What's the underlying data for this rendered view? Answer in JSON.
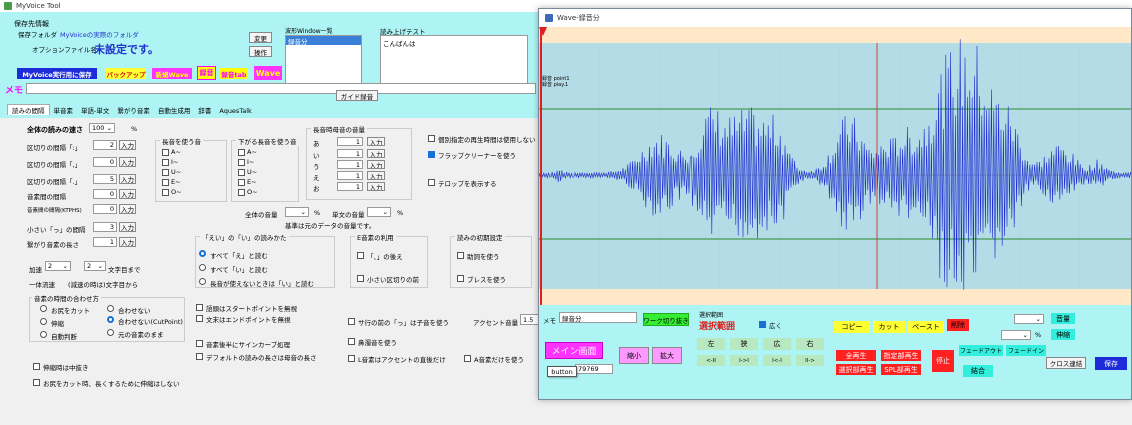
{
  "main_window": {
    "title": "MyVoice Tool",
    "save_dest_label": "保存先情報",
    "save_folder_label": "保存フォルダ",
    "save_folder_value": "MyVoiceの実際のフォルダ",
    "change_button": "変更",
    "option_file_label": "オプションファイル名",
    "option_file_value": "未設定です。",
    "operation_button": "操作",
    "waveform_list_label": "波形Window一覧",
    "waveform_list_item": "録音分",
    "readout_text_label": "読み上げテスト",
    "readout_text_value": "こんばんは",
    "btn_myvoice_save": "MyVoice実行用に保存",
    "btn_backup": "バックアップ",
    "btn_new_wave": "新規Wave",
    "btn_record": "録音",
    "btn_record_tab": "録音tab",
    "btn_wave": "Wave",
    "memo_label": "メモ",
    "guide_record_button": "ガイド録音",
    "tabs": [
      "読みの間隔",
      "単音素",
      "単語-単文",
      "繋がり音素",
      "自動生成用",
      "辞書",
      "AquesTalk"
    ],
    "overall_speed_label": "全体の読みの速さ",
    "overall_speed_value": "100",
    "percent": "%",
    "interval_rows": [
      {
        "label": "区切りの間隔「:」",
        "value": "2",
        "btn": "入力"
      },
      {
        "label": "区切りの間隔「,」",
        "value": "0",
        "btn": "入力"
      },
      {
        "label": "区切りの間隔「.」",
        "value": "5",
        "btn": "入力"
      },
      {
        "label": "音素間の間隔",
        "value": "0",
        "btn": "入力"
      },
      {
        "label": "音素間の間隔(KTPHS)",
        "value": "0",
        "btn": "入力"
      },
      {
        "label": "小さい「っ」の間隔",
        "value": "3",
        "btn": "入力"
      },
      {
        "label": "繋がり音素の長さ",
        "value": "1",
        "btn": "入力"
      }
    ],
    "long_sound_group": "長音を使う音",
    "long_sound_items": [
      "A~",
      "I~",
      "U~",
      "E~",
      "O~"
    ],
    "falling_long_group": "下がる長音を使う音",
    "falling_long_items": [
      "A~",
      "I~",
      "U~",
      "E~",
      "O~"
    ],
    "long_volume_group": "長音時母音の音量",
    "long_volume_rows": [
      {
        "label": "あ",
        "value": "1",
        "btn": "入力"
      },
      {
        "label": "い",
        "value": "1",
        "btn": "入力"
      },
      {
        "label": "う",
        "value": "1",
        "btn": "入力"
      },
      {
        "label": "え",
        "value": "1",
        "btn": "入力"
      },
      {
        "label": "お",
        "value": "1",
        "btn": "入力"
      }
    ],
    "chk_individual": "個別指定の再生時間は使用しない",
    "chk_flop": "フラップクリーナーを使う",
    "chk_telop": "テロップを表示する",
    "overall_volume_label": "全体の音量",
    "single_volume_label": "単文の音量",
    "volume_unit": "%",
    "volume_note": "基準は元のデータの音量です。",
    "accel_label": "加速",
    "accel_value": "2",
    "accel_value2": "2",
    "accel_suffix": "文字目まで",
    "fixed_speed_label": "一体流速",
    "fixed_speed_note": "(減速の時は)文字目から",
    "ai_group": "「えい」の「い」の読みかた",
    "ai_options": [
      "すべて「え」と読む",
      "すべて「い」と読む",
      "長音が使えないときは「い」と読む"
    ],
    "e_group": "E音素の利用",
    "e_items": [
      "「、」の後え",
      "小さい区切りの前"
    ],
    "initial_group": "読みの初期設定",
    "initial_items": [
      "助詞を使う",
      "ブレスを使う"
    ],
    "timing_group": "音素の時間の合わせ方",
    "timing_options": [
      "お尻をカット",
      "合わせない",
      "伸縮",
      "合わせない(CutPoint)",
      "自動判断",
      "元の音素のまま"
    ],
    "chk_start_ignore": "語頭はスタートポイントを無視",
    "chk_end_ignore": "文末はエンドポイントを無視",
    "chk_small_tsu": "サ行の前の「っ」は子音を使う",
    "accent_volume_label": "アクセント音量",
    "accent_volume_value": "1.5",
    "chk_sine_curve": "音素後半にサインカーブ処理",
    "chk_default_len": "デフォルトの読みの長さは母音の長さ",
    "chk_nasal": "鼻濁音を使う",
    "chk_l_accent": "L音素はアクセントの直後だけ",
    "chk_a_only": "A音素だけを使う",
    "chk_stretch_mid": "伸縮時は中抜き",
    "chk_cut_stretch": "お尻をカット時、長くするために伸縮はしない"
  },
  "wave_window": {
    "title": "Wave-録音分",
    "markers": [
      "録音 point1",
      "録音 play.1"
    ],
    "memo_label": "メモ",
    "memo_value": "録音分",
    "btn_work_start": "ワーク切り抜き",
    "selection_label": "選択範囲",
    "selection_big": "選択範囲",
    "chk_wide": "広く",
    "main_screen_btn": "メイン画面",
    "btn_shrink": "縮小",
    "btn_expand": "拡大",
    "btn_left": "左",
    "btn_narrow": "狭",
    "btn_wide": "広",
    "btn_right": "右",
    "arrow_buttons": [
      "<-II",
      "I->I",
      "I<-I",
      "II->"
    ],
    "btn_copy": "コピー",
    "btn_cut": "カット",
    "btn_paste": "ペースト",
    "btn_delete": "削除",
    "btn_play_all": "全再生",
    "btn_play_selected": "指定部再生",
    "btn_stop": "停止",
    "btn_play_select_region": "選択部再生",
    "btn_spl_play": "SPL部再生",
    "btn_join": "結合",
    "btn_fadeout": "フェードアウト",
    "btn_fadein": "フェードイン",
    "btn_volume": "音量",
    "btn_stretch": "伸縮",
    "volume_unit": "%",
    "btn_cross_link": "クロス連結",
    "btn_save": "保存",
    "sample_count": "79769",
    "tooltip": "button"
  }
}
